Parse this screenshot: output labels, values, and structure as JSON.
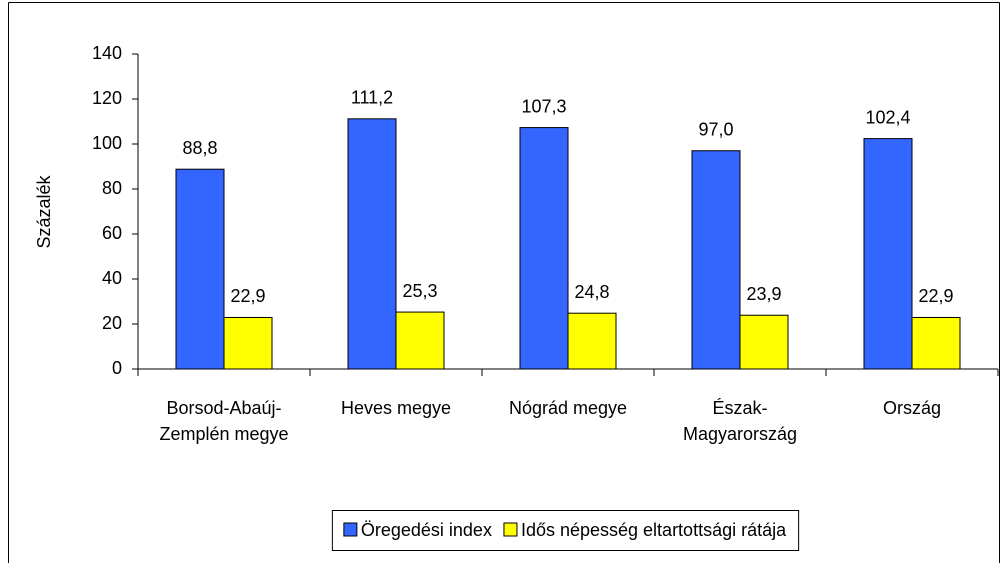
{
  "chart_data": {
    "type": "bar",
    "categories": [
      "Borsod-Abaúj-Zemplén megye",
      "Heves megye",
      "Nógrád megye",
      "Észak-Magyarország",
      "Ország"
    ],
    "series": [
      {
        "name": "Öregedési index",
        "color": "#3366ff",
        "values": [
          88.8,
          111.2,
          107.3,
          97.0,
          102.4
        ],
        "value_labels": [
          "88,8",
          "111,2",
          "107,3",
          "97,0",
          "102,4"
        ]
      },
      {
        "name": "Idős népesség eltartottsági rátája",
        "color": "#ffff00",
        "values": [
          22.9,
          25.3,
          24.8,
          23.9,
          22.9
        ],
        "value_labels": [
          "22,9",
          "25,3",
          "24,8",
          "23,9",
          "22,9"
        ]
      }
    ],
    "y_label": "Százalék",
    "ylim": [
      0,
      140
    ],
    "yticks": [
      0,
      20,
      40,
      60,
      80,
      100,
      120,
      140
    ],
    "grid": false,
    "legend": "bottom"
  }
}
